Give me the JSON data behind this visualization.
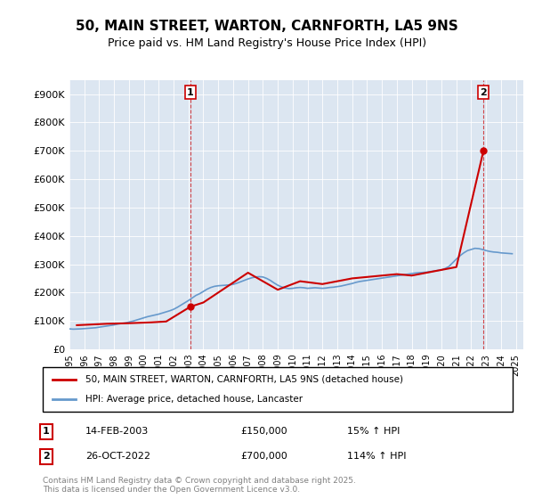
{
  "title": "50, MAIN STREET, WARTON, CARNFORTH, LA5 9NS",
  "subtitle": "Price paid vs. HM Land Registry's House Price Index (HPI)",
  "legend_line1": "50, MAIN STREET, WARTON, CARNFORTH, LA5 9NS (detached house)",
  "legend_line2": "HPI: Average price, detached house, Lancaster",
  "footer": "Contains HM Land Registry data © Crown copyright and database right 2025.\nThis data is licensed under the Open Government Licence v3.0.",
  "sale1_label": "1",
  "sale1_date": "14-FEB-2003",
  "sale1_price": "£150,000",
  "sale1_hpi": "15% ↑ HPI",
  "sale2_label": "2",
  "sale2_date": "26-OCT-2022",
  "sale2_price": "£700,000",
  "sale2_hpi": "114% ↑ HPI",
  "price_line_color": "#cc0000",
  "hpi_line_color": "#6699cc",
  "background_color": "#dce6f1",
  "plot_bg_color": "#dce6f1",
  "ylim_min": 0,
  "ylim_max": 950000,
  "yticks": [
    0,
    100000,
    200000,
    300000,
    400000,
    500000,
    600000,
    700000,
    800000,
    900000
  ],
  "ytick_labels": [
    "£0",
    "£100K",
    "£200K",
    "£300K",
    "£400K",
    "£500K",
    "£600K",
    "£700K",
    "£800K",
    "£900K"
  ],
  "xmin": 1995.0,
  "xmax": 2025.5,
  "sale1_x": 2003.12,
  "sale1_y": 150000,
  "sale2_x": 2022.82,
  "sale2_y": 700000,
  "hpi_years": [
    1995.0,
    1995.25,
    1995.5,
    1995.75,
    1996.0,
    1996.25,
    1996.5,
    1996.75,
    1997.0,
    1997.25,
    1997.5,
    1997.75,
    1998.0,
    1998.25,
    1998.5,
    1998.75,
    1999.0,
    1999.25,
    1999.5,
    1999.75,
    2000.0,
    2000.25,
    2000.5,
    2000.75,
    2001.0,
    2001.25,
    2001.5,
    2001.75,
    2002.0,
    2002.25,
    2002.5,
    2002.75,
    2003.0,
    2003.25,
    2003.5,
    2003.75,
    2004.0,
    2004.25,
    2004.5,
    2004.75,
    2005.0,
    2005.25,
    2005.5,
    2005.75,
    2006.0,
    2006.25,
    2006.5,
    2006.75,
    2007.0,
    2007.25,
    2007.5,
    2007.75,
    2008.0,
    2008.25,
    2008.5,
    2008.75,
    2009.0,
    2009.25,
    2009.5,
    2009.75,
    2010.0,
    2010.25,
    2010.5,
    2010.75,
    2011.0,
    2011.25,
    2011.5,
    2011.75,
    2012.0,
    2012.25,
    2012.5,
    2012.75,
    2013.0,
    2013.25,
    2013.5,
    2013.75,
    2014.0,
    2014.25,
    2014.5,
    2014.75,
    2015.0,
    2015.25,
    2015.5,
    2015.75,
    2016.0,
    2016.25,
    2016.5,
    2016.75,
    2017.0,
    2017.25,
    2017.5,
    2017.75,
    2018.0,
    2018.25,
    2018.5,
    2018.75,
    2019.0,
    2019.25,
    2019.5,
    2019.75,
    2020.0,
    2020.25,
    2020.5,
    2020.75,
    2021.0,
    2021.25,
    2021.5,
    2021.75,
    2022.0,
    2022.25,
    2022.5,
    2022.75,
    2023.0,
    2023.25,
    2023.5,
    2023.75,
    2024.0,
    2024.25,
    2024.5,
    2024.75
  ],
  "hpi_values": [
    72000,
    71000,
    71500,
    72000,
    73000,
    74000,
    75000,
    76000,
    78000,
    80000,
    82000,
    84000,
    86000,
    89000,
    91000,
    93000,
    96000,
    99000,
    103000,
    107000,
    111000,
    115000,
    118000,
    121000,
    124000,
    128000,
    132000,
    136000,
    141000,
    148000,
    156000,
    164000,
    172000,
    181000,
    190000,
    196000,
    204000,
    212000,
    218000,
    222000,
    224000,
    225000,
    226000,
    227000,
    229000,
    233000,
    238000,
    243000,
    248000,
    252000,
    255000,
    256000,
    255000,
    250000,
    243000,
    234000,
    226000,
    220000,
    216000,
    214000,
    215000,
    217000,
    218000,
    217000,
    215000,
    216000,
    217000,
    216000,
    215000,
    216000,
    218000,
    219000,
    221000,
    223000,
    226000,
    229000,
    232000,
    236000,
    239000,
    241000,
    243000,
    245000,
    247000,
    249000,
    251000,
    253000,
    255000,
    257000,
    259000,
    261000,
    263000,
    265000,
    267000,
    269000,
    270000,
    271000,
    272000,
    274000,
    276000,
    278000,
    280000,
    285000,
    292000,
    305000,
    318000,
    330000,
    340000,
    348000,
    352000,
    356000,
    355000,
    352000,
    348000,
    345000,
    343000,
    342000,
    340000,
    339000,
    338000,
    337000
  ],
  "price_years": [
    1995.5,
    1997.5,
    1999.0,
    2000.5,
    2001.5,
    2003.12,
    2004.0,
    2007.0,
    2009.0,
    2010.5,
    2012.0,
    2014.0,
    2015.0,
    2017.0,
    2018.0,
    2019.0,
    2021.0,
    2022.82
  ],
  "price_values": [
    85000,
    90000,
    92000,
    95000,
    98000,
    150000,
    165000,
    270000,
    210000,
    240000,
    230000,
    250000,
    255000,
    265000,
    260000,
    270000,
    290000,
    700000
  ]
}
